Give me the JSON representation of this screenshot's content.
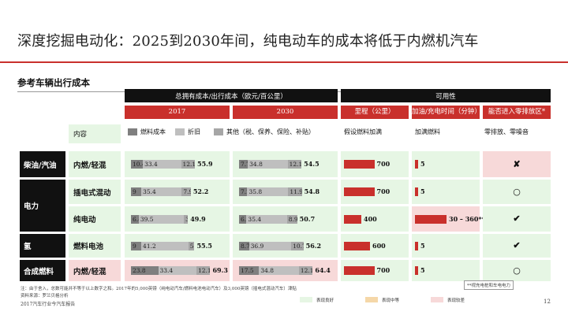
{
  "title": "深度挖掘电动化：2025到2030年间，纯电动车的成本将低于内燃机汽车",
  "subtitle": "参考车辆出行成本",
  "headers": {
    "tco": "总拥有成本/出行成本（欧元/百公里）",
    "usability": "可用性",
    "year_2017": "2017",
    "year_2030": "2030",
    "range": "里程（公里）",
    "refuel": "加油/充电时间（分钟）",
    "zero_emission": "能否进入零排放区*",
    "content": "内容",
    "range_note": "假设燃料加满",
    "refuel_note": "加满燃料",
    "zero_note": "零排放、零噪音"
  },
  "legend": {
    "fuel": "燃料成本",
    "depreciation": "折旧",
    "other": "其他（税、保养、保险、补贴）"
  },
  "categories": [
    {
      "label": "柴油/汽油"
    },
    {
      "label": "电力"
    },
    {
      "label": "氢"
    },
    {
      "label": "合成燃料"
    }
  ],
  "chart_data": {
    "type": "bar",
    "stacked": true,
    "categories": [
      "内燃/轻混",
      "插电式混动",
      "纯电动",
      "燃料电池",
      "内燃/轻混"
    ],
    "tco_2017": [
      {
        "fuel": 10.4,
        "dep": 33.4,
        "other": 12.1,
        "total": 55.9
      },
      {
        "fuel": 9.0,
        "dep": 35.4,
        "other": 7.9,
        "total": 52.2
      },
      {
        "fuel": 6.8,
        "dep": 39.5,
        "other": 3.5,
        "total": 49.9
      },
      {
        "fuel": 9.0,
        "dep": 41.2,
        "other": 5.3,
        "total": 55.5
      },
      {
        "fuel": 23.8,
        "dep": 33.4,
        "other": 12.1,
        "total": 69.3
      }
    ],
    "tco_2030": [
      {
        "fuel": 7.7,
        "dep": 34.8,
        "other": 12.1,
        "total": 54.5
      },
      {
        "fuel": 7.2,
        "dep": 35.8,
        "other": 11.9,
        "total": 54.8
      },
      {
        "fuel": 6.5,
        "dep": 35.4,
        "other": 8.9,
        "total": 50.7
      },
      {
        "fuel": 8.7,
        "dep": 36.9,
        "other": 10.7,
        "total": 56.2
      },
      {
        "fuel": 17.5,
        "dep": 34.8,
        "other": 12.1,
        "total": 64.4
      }
    ],
    "range": [
      700,
      700,
      400,
      600,
      700
    ],
    "refuel": [
      "5",
      "5",
      "30 – 360**",
      "5",
      "5"
    ],
    "zero_emission": [
      "✘",
      "○",
      "✔",
      "✔",
      "○"
    ]
  },
  "notes": {
    "footnote1": "注：由于舍入，总数可能并不等于以上数字之和。2017年的5,000英镑（纯电动汽车/燃料电池电动汽车）及3,000英镑（插电式混动汽车）津贴",
    "footnote2": "资料来源：罗兰贝格分析",
    "charge_note": "**视充电桩和车电电力",
    "publisher": "2017汽车行业今汽车报告",
    "page": "12"
  },
  "bottom_legend": {
    "good": "表现良好",
    "mid": "表现中等",
    "poor": "表现较差"
  },
  "colors": {
    "red": "#c9302c",
    "fuel": "#7f7f7f",
    "dep": "#bfbfbf",
    "other": "#a6a6a6",
    "green": "#e6f6e4",
    "pink": "#f7d9d9",
    "orange": "#f5d7a8"
  }
}
